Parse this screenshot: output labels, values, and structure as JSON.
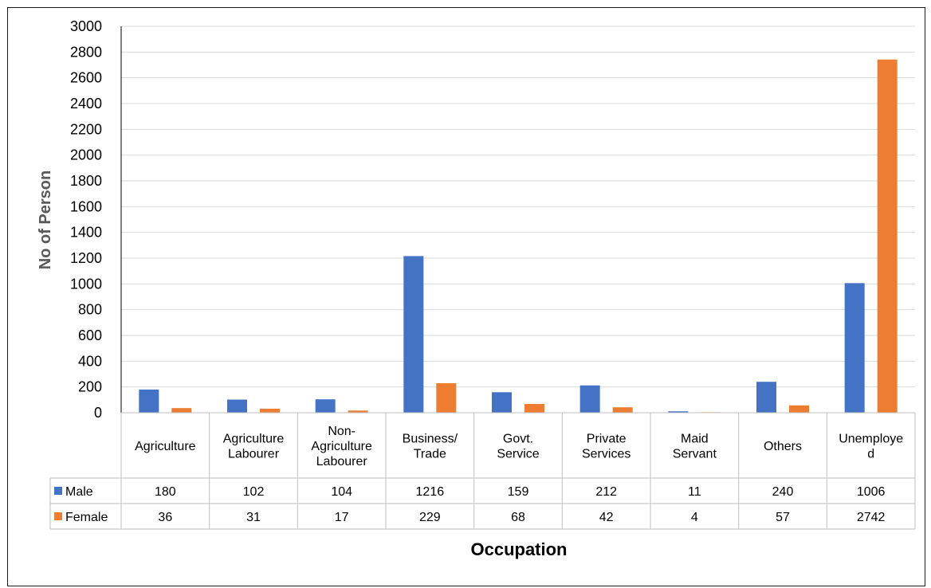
{
  "chart_data": {
    "type": "bar",
    "title": "",
    "xlabel": "Occupation",
    "ylabel": "No of Person",
    "ylim": [
      0,
      3000
    ],
    "ytick_step": 200,
    "grid": true,
    "legend": "in data table",
    "categories": [
      [
        "Agriculture"
      ],
      [
        "Agriculture",
        "Labourer"
      ],
      [
        "Non-",
        "Agriculture",
        "Labourer"
      ],
      [
        "Business/",
        "Trade"
      ],
      [
        "Govt.",
        "Service"
      ],
      [
        "Private",
        "Services"
      ],
      [
        "Maid",
        "Servant"
      ],
      [
        "Others"
      ],
      [
        "Unemploye",
        "d"
      ]
    ],
    "series": [
      {
        "name": "Male",
        "color": "#4472C4",
        "values": [
          180,
          102,
          104,
          1216,
          159,
          212,
          11,
          240,
          1006
        ]
      },
      {
        "name": "Female",
        "color": "#ED7D31",
        "values": [
          36,
          31,
          17,
          229,
          68,
          42,
          4,
          57,
          2742
        ]
      }
    ]
  }
}
